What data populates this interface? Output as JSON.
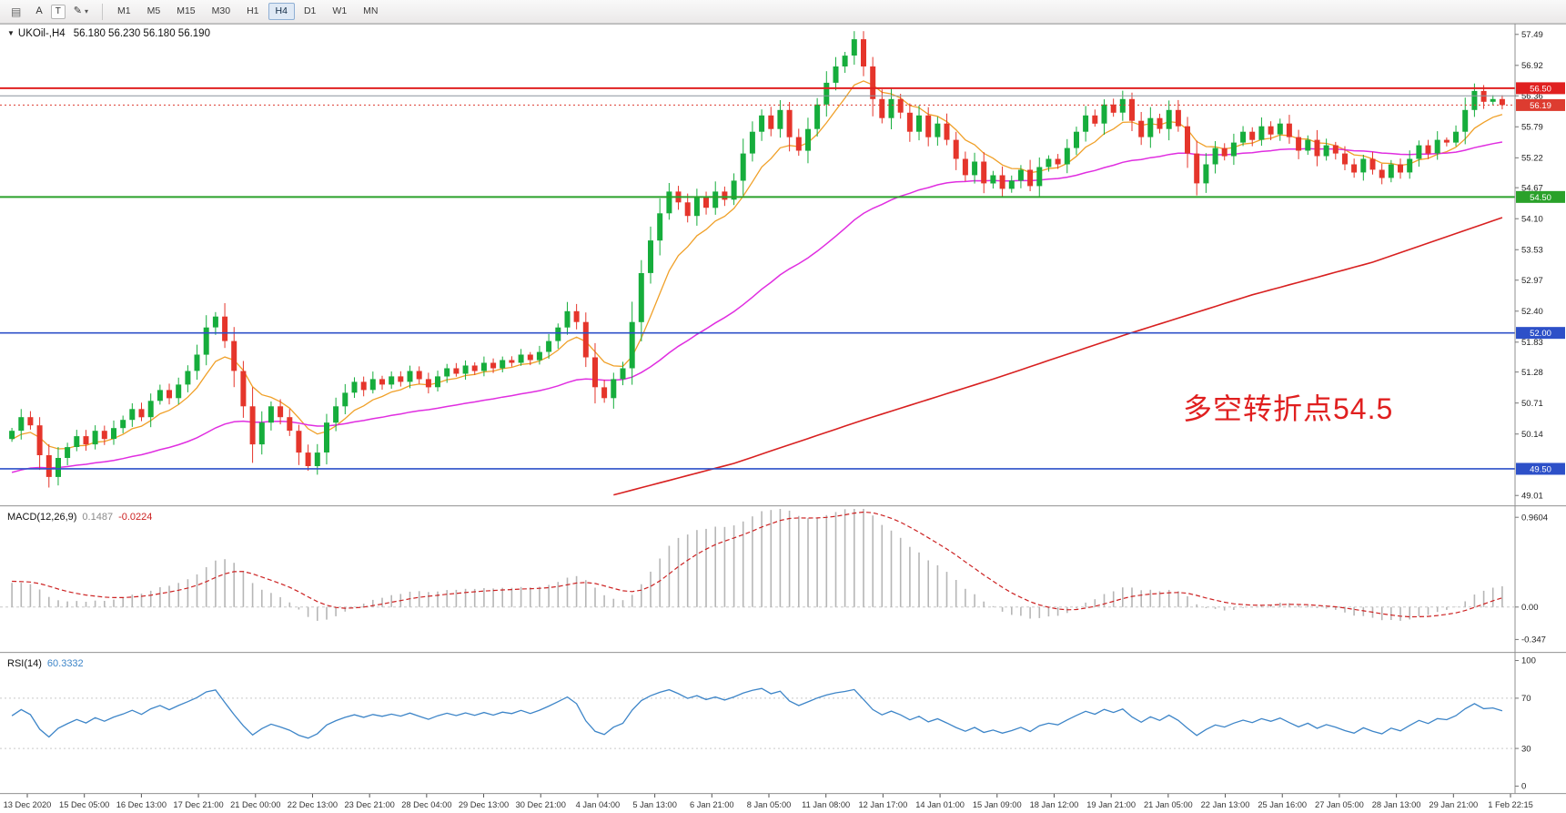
{
  "toolbar": {
    "list_icon_glyph": "▤",
    "a_tool": "A",
    "t_tool": "T",
    "draw_icon_glyph": "✎",
    "timeframes": [
      "M1",
      "M5",
      "M15",
      "M30",
      "H1",
      "H4",
      "D1",
      "W1",
      "MN"
    ],
    "active_timeframe": "H4"
  },
  "chart_data": {
    "type": "candlestick",
    "symbol": "UKOil-",
    "timeframe": "H4",
    "title": "UKOil-,H4",
    "ohlc_display": "56.180 56.230 56.180 56.190",
    "annotation": {
      "text": "多空转折点54.5",
      "color": "#e01f1f"
    },
    "y_ticks": [
      57.49,
      56.92,
      56.36,
      55.79,
      55.22,
      54.67,
      54.1,
      53.53,
      52.97,
      52.4,
      51.83,
      51.28,
      50.71,
      50.14,
      49.01
    ],
    "y_range": [
      48.88,
      57.62
    ],
    "x_labels": [
      "13 Dec 2020",
      "15 Dec 05:00",
      "16 Dec 13:00",
      "17 Dec 21:00",
      "21 Dec 00:00",
      "22 Dec 13:00",
      "23 Dec 21:00",
      "28 Dec 04:00",
      "29 Dec 13:00",
      "30 Dec 21:00",
      "4 Jan 04:00",
      "5 Jan 13:00",
      "6 Jan 21:00",
      "8 Jan 05:00",
      "11 Jan 08:00",
      "12 Jan 17:00",
      "14 Jan 01:00",
      "15 Jan 09:00",
      "18 Jan 12:00",
      "19 Jan 21:00",
      "21 Jan 05:00",
      "22 Jan 13:00",
      "25 Jan 16:00",
      "27 Jan 05:00",
      "28 Jan 13:00",
      "29 Jan 21:00",
      "1 Feb 22:15"
    ],
    "closes": [
      50.2,
      50.45,
      50.3,
      49.75,
      49.35,
      49.7,
      49.9,
      50.1,
      49.95,
      50.2,
      50.05,
      50.25,
      50.4,
      50.6,
      50.45,
      50.75,
      50.95,
      50.8,
      51.05,
      51.3,
      51.6,
      52.1,
      52.3,
      51.85,
      51.3,
      50.65,
      49.95,
      50.35,
      50.65,
      50.45,
      50.2,
      49.8,
      49.55,
      49.8,
      50.35,
      50.65,
      50.9,
      51.1,
      50.95,
      51.15,
      51.05,
      51.2,
      51.1,
      51.3,
      51.15,
      51.0,
      51.2,
      51.35,
      51.25,
      51.4,
      51.3,
      51.45,
      51.35,
      51.5,
      51.45,
      51.6,
      51.5,
      51.65,
      51.85,
      52.1,
      52.4,
      52.2,
      51.55,
      51.0,
      50.8,
      51.15,
      51.35,
      52.2,
      53.1,
      53.7,
      54.2,
      54.6,
      54.4,
      54.15,
      54.5,
      54.3,
      54.6,
      54.45,
      54.8,
      55.3,
      55.7,
      56.0,
      55.75,
      56.1,
      55.6,
      55.35,
      55.75,
      56.2,
      56.6,
      56.9,
      57.1,
      57.4,
      56.9,
      56.3,
      55.95,
      56.3,
      56.05,
      55.7,
      56.0,
      55.6,
      55.85,
      55.55,
      55.2,
      54.9,
      55.15,
      54.75,
      54.9,
      54.65,
      54.8,
      55.0,
      54.7,
      55.05,
      55.2,
      55.1,
      55.4,
      55.7,
      56.0,
      55.85,
      56.2,
      56.05,
      56.3,
      55.9,
      55.6,
      55.95,
      55.75,
      56.1,
      55.8,
      55.3,
      54.75,
      55.1,
      55.4,
      55.25,
      55.5,
      55.7,
      55.55,
      55.8,
      55.65,
      55.85,
      55.6,
      55.35,
      55.55,
      55.25,
      55.45,
      55.3,
      55.1,
      54.95,
      55.2,
      55.0,
      54.85,
      55.1,
      54.95,
      55.2,
      55.45,
      55.3,
      55.55,
      55.5,
      55.7,
      56.1,
      56.45,
      56.25,
      56.3,
      56.19
    ],
    "levels": [
      {
        "name": "resistance-line-56-50",
        "price": 56.5,
        "label": "56.50",
        "color": "#e02020",
        "width": 2,
        "style": "solid",
        "box": true
      },
      {
        "name": "gray-line-56-36",
        "price": 56.36,
        "label": null,
        "color": "#8a949e",
        "width": 1,
        "style": "solid",
        "box": false
      },
      {
        "name": "bid-price-line",
        "price": 56.19,
        "label": "56.19",
        "color": "#dd3c30",
        "width": 1,
        "style": "dotted",
        "box": true
      },
      {
        "name": "pivot-line-54-50",
        "price": 54.5,
        "label": "54.50",
        "color": "#2aa12a",
        "width": 2,
        "style": "solid",
        "box": true
      },
      {
        "name": "support-line-52-00",
        "price": 52.0,
        "label": "52.00",
        "color": "#2d50c8",
        "width": 1.6,
        "style": "solid",
        "box": true
      },
      {
        "name": "support-line-49-50",
        "price": 49.5,
        "label": "49.50",
        "color": "#2d50c8",
        "width": 1.6,
        "style": "solid",
        "box": true
      }
    ],
    "ma_fast": {
      "type": "ema",
      "period": 8,
      "color": "#f0a028"
    },
    "ma_mid": {
      "type": "ema",
      "period": 45,
      "seed": 49.4,
      "color": "#e02ee0"
    },
    "ma_slow": {
      "color": "#d82020",
      "points": [
        [
          65,
          49.02
        ],
        [
          78,
          49.6
        ],
        [
          92,
          50.4
        ],
        [
          106,
          51.15
        ],
        [
          120,
          51.95
        ],
        [
          134,
          52.7
        ],
        [
          147,
          53.3
        ],
        [
          161,
          54.12
        ]
      ]
    },
    "colors": {
      "up": "#16ad3c",
      "down": "#e5352b",
      "macd_hist": "#b6b6b6",
      "macd_signal": "#cc2222",
      "rsi": "#3d85c8"
    },
    "indicators": {
      "macd": {
        "label": "MACD(12,26,9)",
        "value_main": "0.1487",
        "value_signal": "-0.0224",
        "params": [
          12,
          26,
          9
        ],
        "y_ticks": [
          "0.9604",
          "0.00",
          "-0.347"
        ]
      },
      "rsi": {
        "label": "RSI(14)",
        "value": "60.3332",
        "period": 14,
        "levels": [
          70,
          30
        ],
        "y_ticks": [
          "100",
          "70",
          "30",
          "0"
        ]
      }
    }
  }
}
